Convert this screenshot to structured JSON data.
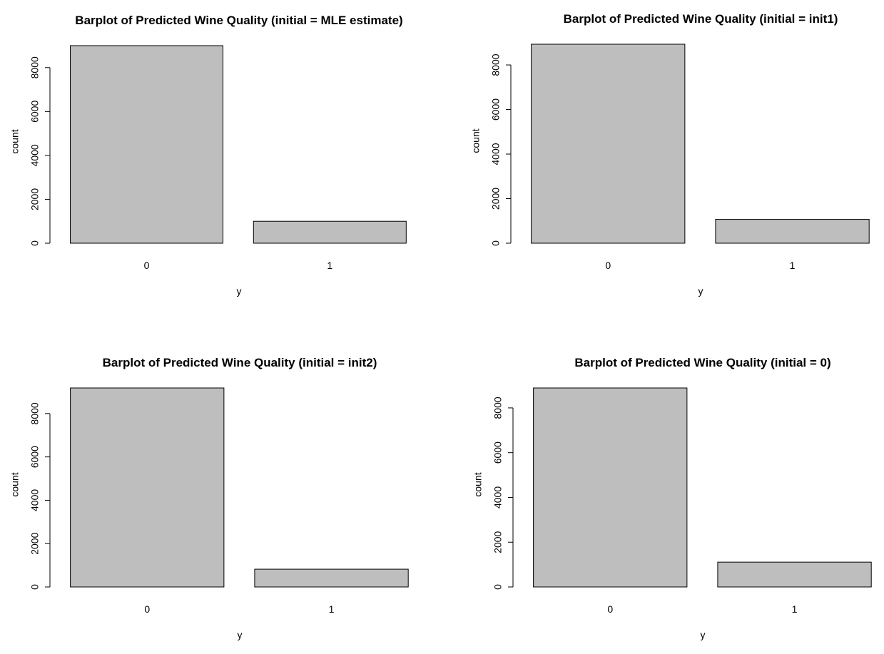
{
  "colors": {
    "bar_fill": "#bebebe",
    "bar_stroke": "#000000",
    "background": "#ffffff"
  },
  "chart_data": [
    {
      "type": "bar",
      "title": "Barplot of Predicted Wine Quality (initial = MLE estimate)",
      "xlabel": "y",
      "ylabel": "count",
      "categories": [
        "0",
        "1"
      ],
      "values": [
        9000,
        1000
      ],
      "ylim": [
        0,
        9000
      ],
      "yticks": [
        "0",
        "2000",
        "4000",
        "6000",
        "8000"
      ],
      "grid": false,
      "legend": "none"
    },
    {
      "type": "bar",
      "title": "Barplot of Predicted Wine Quality (initial = init1)",
      "xlabel": "y",
      "ylabel": "count",
      "categories": [
        "0",
        "1"
      ],
      "values": [
        8930,
        1070
      ],
      "ylim": [
        0,
        8930
      ],
      "yticks": [
        "0",
        "2000",
        "4000",
        "6000",
        "8000"
      ],
      "grid": false,
      "legend": "none"
    },
    {
      "type": "bar",
      "title": "Barplot of Predicted Wine Quality (initial = init2)",
      "xlabel": "y",
      "ylabel": "count",
      "categories": [
        "0",
        "1"
      ],
      "values": [
        9180,
        820
      ],
      "ylim": [
        0,
        9180
      ],
      "yticks": [
        "0",
        "2000",
        "4000",
        "6000",
        "8000"
      ],
      "grid": false,
      "legend": "none"
    },
    {
      "type": "bar",
      "title": "Barplot of Predicted Wine Quality (initial = 0)",
      "xlabel": "y",
      "ylabel": "count",
      "categories": [
        "0",
        "1"
      ],
      "values": [
        8890,
        1110
      ],
      "ylim": [
        0,
        8890
      ],
      "yticks": [
        "0",
        "2000",
        "4000",
        "6000",
        "8000"
      ],
      "grid": false,
      "legend": "none"
    }
  ]
}
